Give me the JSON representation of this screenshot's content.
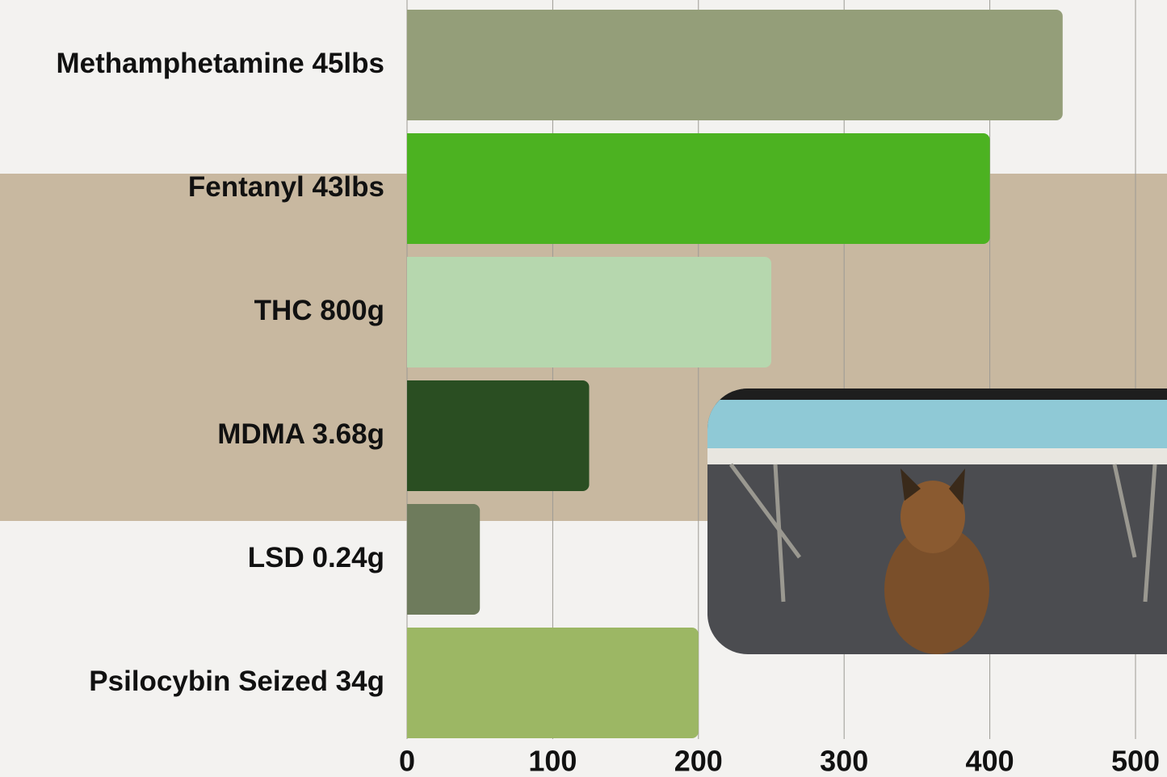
{
  "chart_data": {
    "type": "bar",
    "orientation": "horizontal",
    "categories": [
      "Methamphetamine 45lbs",
      "Fentanyl 43lbs",
      "THC 800g",
      "MDMA 3.68g",
      "LSD 0.24g",
      "Psilocybin Seized 34g"
    ],
    "values": [
      450,
      400,
      250,
      125,
      50,
      200
    ],
    "colors": [
      "#949e79",
      "#4cb221",
      "#b6d7ae",
      "#2a4e22",
      "#6e7b5c",
      "#9cb764"
    ],
    "xlim": [
      0,
      500
    ],
    "xticks": [
      0,
      100,
      200,
      300,
      400,
      500
    ],
    "grid": true
  }
}
